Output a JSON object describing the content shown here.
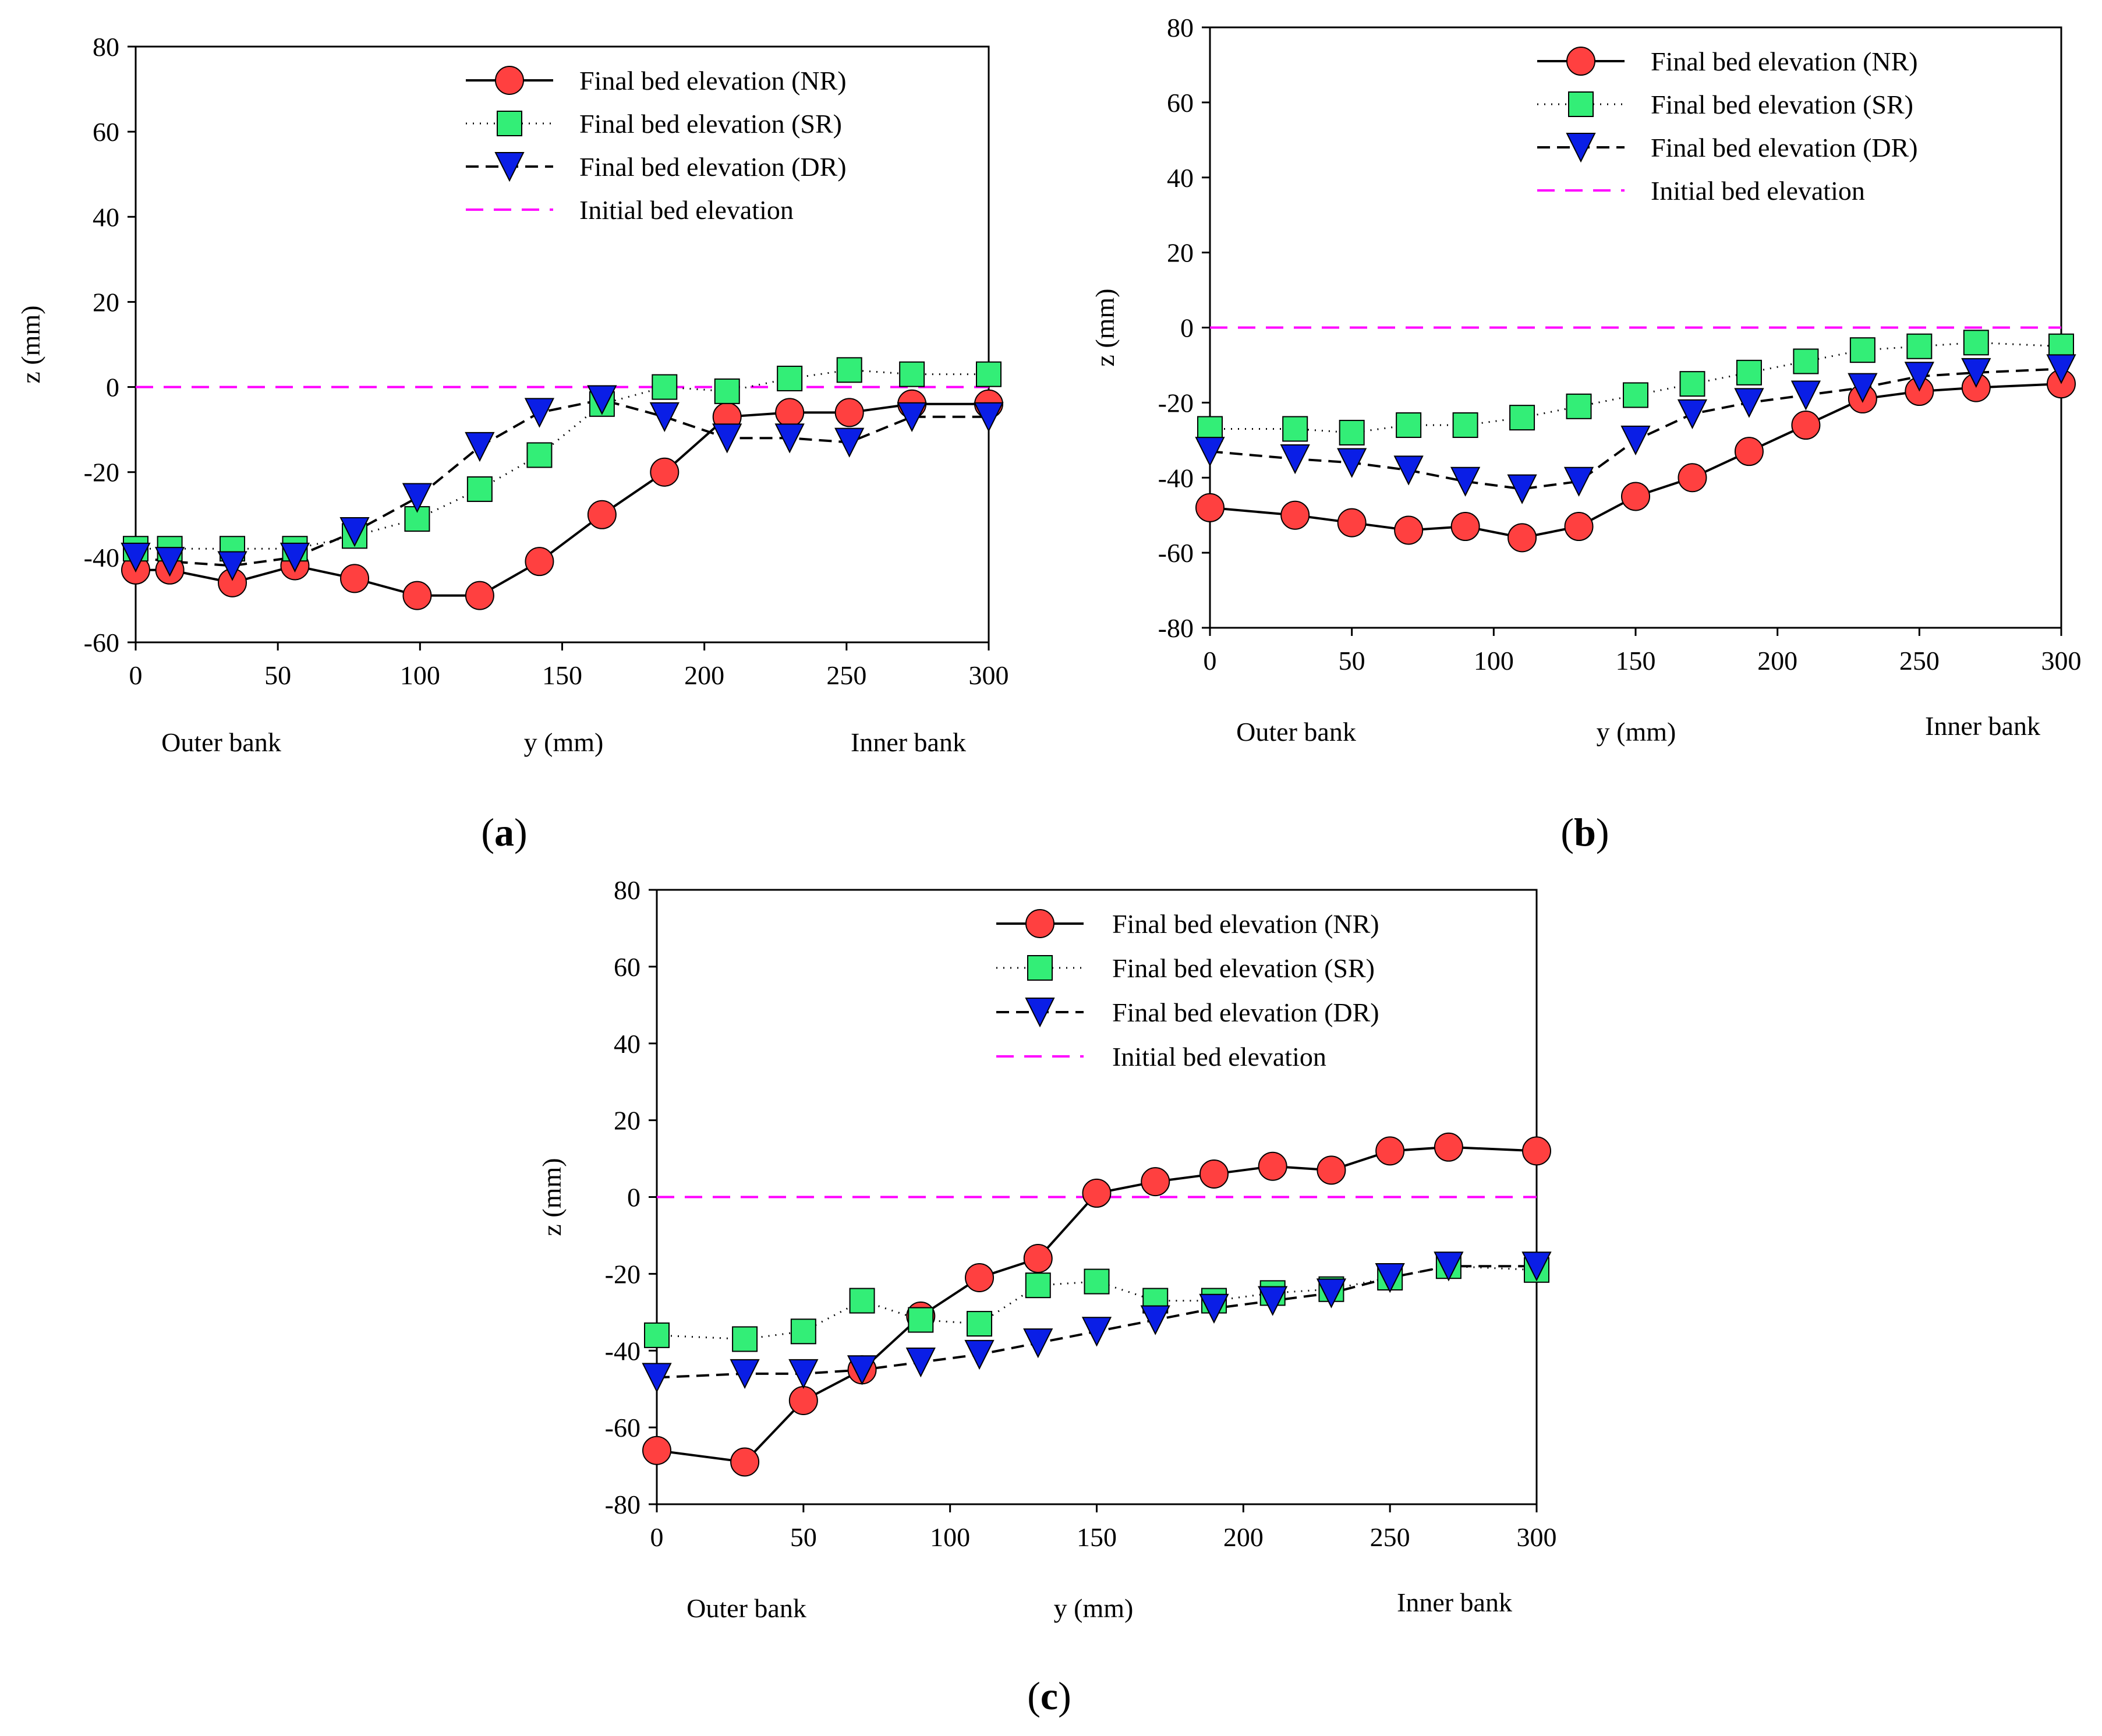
{
  "figure": {
    "panels": [
      {
        "label_open": "(",
        "label_letter": "a",
        "label_close": ")"
      },
      {
        "label_open": "(",
        "label_letter": "b",
        "label_close": ")"
      },
      {
        "label_open": "(",
        "label_letter": "c",
        "label_close": ")"
      }
    ]
  },
  "styles": {
    "NR": {
      "marker": "circle",
      "fill": "#ff4040",
      "stroke": "#000000",
      "line": "solid"
    },
    "SR": {
      "marker": "square",
      "fill": "#33ee77",
      "stroke": "#000000",
      "line": "dotted"
    },
    "DR": {
      "marker": "triangle-down",
      "fill": "#0a1ee6",
      "stroke": "#000000",
      "line": "dashed"
    },
    "initial": {
      "color": "#ff00ff",
      "line": "dashed"
    }
  },
  "chart_data": [
    {
      "type": "line",
      "panel": "a",
      "xlabel": "y (mm)",
      "ylabel": "z (mm)",
      "xlim": [
        0,
        300
      ],
      "ylim": [
        -60,
        80
      ],
      "xticks": [
        0,
        50,
        100,
        150,
        200,
        250,
        300
      ],
      "yticks": [
        -60,
        -40,
        -20,
        0,
        20,
        40,
        60,
        80
      ],
      "annotations": {
        "left": "Outer bank",
        "right": "Inner bank"
      },
      "legend": [
        "Final bed elevation (NR)",
        "Final bed elevation (SR)",
        "Final bed elevation (DR)",
        "Initial bed elevation"
      ],
      "x": [
        0,
        12,
        34,
        56,
        77,
        99,
        121,
        142,
        164,
        186,
        208,
        230,
        251,
        273,
        300
      ],
      "series": [
        {
          "key": "NR",
          "name": "Final bed elevation (NR)",
          "values": [
            -43,
            -43,
            -46,
            -42,
            -45,
            -49,
            -49,
            -41,
            -30,
            -20,
            -7,
            -6,
            -6,
            -4,
            -4
          ]
        },
        {
          "key": "SR",
          "name": "Final bed elevation (SR)",
          "values": [
            -38,
            -38,
            -38,
            -38,
            -35,
            -31,
            -24,
            -16,
            -4,
            0,
            -1,
            2,
            4,
            3,
            3
          ]
        },
        {
          "key": "DR",
          "name": "Final bed elevation (DR)",
          "values": [
            -40,
            -41,
            -42,
            -40,
            -34,
            -26,
            -14,
            -6,
            -3,
            -7,
            -12,
            -12,
            -13,
            -7,
            -7
          ]
        }
      ],
      "initial": 0
    },
    {
      "type": "line",
      "panel": "b",
      "xlabel": "y (mm)",
      "ylabel": "z (mm)",
      "xlim": [
        0,
        300
      ],
      "ylim": [
        -80,
        80
      ],
      "xticks": [
        0,
        50,
        100,
        150,
        200,
        250,
        300
      ],
      "yticks": [
        -80,
        -60,
        -40,
        -20,
        0,
        20,
        40,
        60,
        80
      ],
      "annotations": {
        "left": "Outer bank",
        "right": "Inner bank"
      },
      "legend": [
        "Final bed elevation (NR)",
        "Final bed elevation (SR)",
        "Final bed elevation (DR)",
        "Initial bed elevation"
      ],
      "x": [
        0,
        30,
        50,
        70,
        90,
        110,
        130,
        150,
        170,
        190,
        210,
        230,
        250,
        270,
        300
      ],
      "series": [
        {
          "key": "NR",
          "name": "Final bed elevation (NR)",
          "values": [
            -48,
            -50,
            -52,
            -54,
            -53,
            -56,
            -53,
            -45,
            -40,
            -33,
            -26,
            -19,
            -17,
            -16,
            -15
          ]
        },
        {
          "key": "SR",
          "name": "Final bed elevation (SR)",
          "values": [
            -27,
            -27,
            -28,
            -26,
            -26,
            -24,
            -21,
            -18,
            -15,
            -12,
            -9,
            -6,
            -5,
            -4,
            -5
          ]
        },
        {
          "key": "DR",
          "name": "Final bed elevation (DR)",
          "values": [
            -33,
            -35,
            -36,
            -38,
            -41,
            -43,
            -41,
            -30,
            -23,
            -20,
            -18,
            -16,
            -13,
            -12,
            -11
          ]
        }
      ],
      "initial": 0
    },
    {
      "type": "line",
      "panel": "c",
      "xlabel": "y (mm)",
      "ylabel": "z (mm)",
      "xlim": [
        0,
        300
      ],
      "ylim": [
        -80,
        80
      ],
      "xticks": [
        0,
        50,
        100,
        150,
        200,
        250,
        300
      ],
      "yticks": [
        -80,
        -60,
        -40,
        -20,
        0,
        20,
        40,
        60,
        80
      ],
      "annotations": {
        "left": "Outer bank",
        "right": "Inner bank"
      },
      "legend": [
        "Final bed elevation (NR)",
        "Final bed elevation (SR)",
        "Final bed elevation (DR)",
        "Initial bed elevation"
      ],
      "x": [
        0,
        30,
        50,
        70,
        90,
        110,
        130,
        150,
        170,
        190,
        210,
        230,
        250,
        270,
        300
      ],
      "series": [
        {
          "key": "NR",
          "name": "Final bed elevation (NR)",
          "values": [
            -66,
            -69,
            -53,
            -45,
            -31,
            -21,
            -16,
            1,
            4,
            6,
            8,
            7,
            12,
            13,
            12
          ]
        },
        {
          "key": "SR",
          "name": "Final bed elevation (SR)",
          "values": [
            -36,
            -37,
            -35,
            -27,
            -32,
            -33,
            -23,
            -22,
            -27,
            -27,
            -25,
            -24,
            -21,
            -18,
            -19
          ]
        },
        {
          "key": "DR",
          "name": "Final bed elevation (DR)",
          "values": [
            -47,
            -46,
            -46,
            -45,
            -43,
            -41,
            -38,
            -35,
            -32,
            -29,
            -27,
            -25,
            -21,
            -18,
            -18
          ]
        }
      ],
      "initial": 0
    }
  ]
}
